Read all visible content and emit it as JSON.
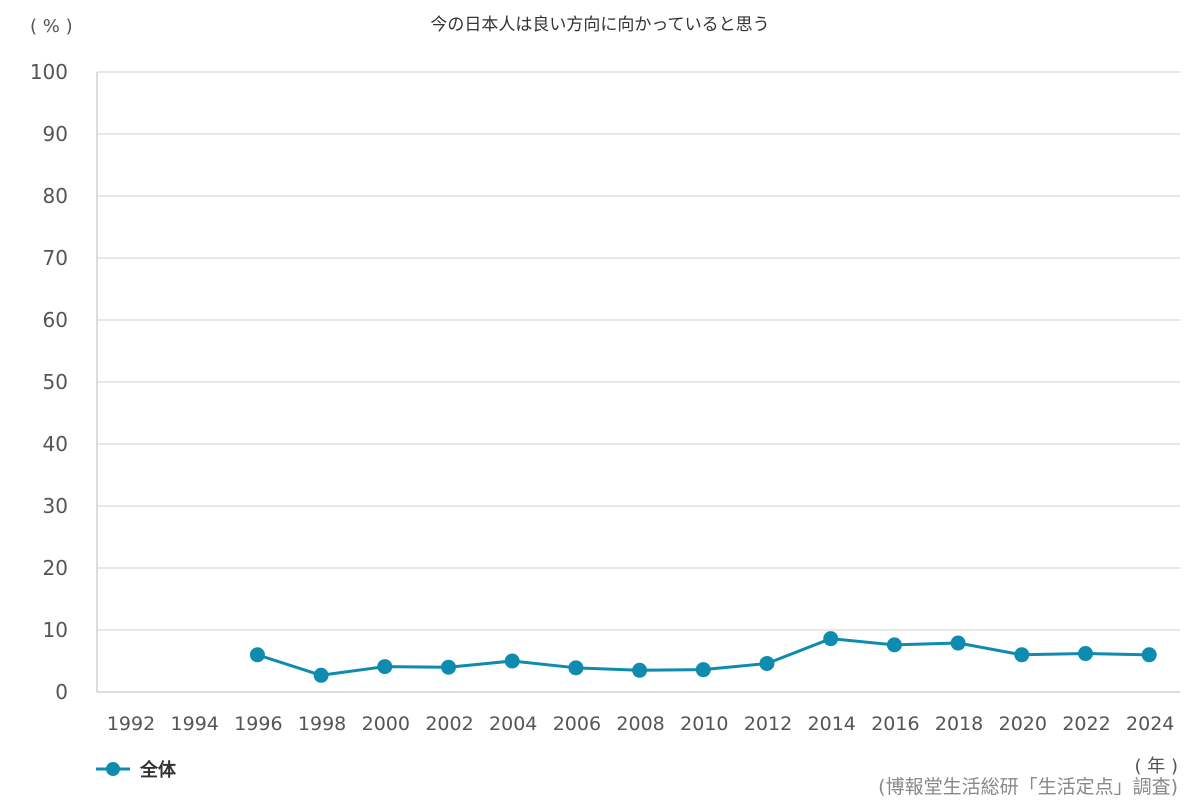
{
  "chart_data": {
    "type": "line",
    "title": "今の日本人は良い方向に向かっていると思う",
    "ylabel": "( % )",
    "xlabel": "( 年 )",
    "source": "(博報堂生活総研「生活定点」調査)",
    "ylim": [
      0,
      100
    ],
    "yticks": [
      0,
      10,
      20,
      30,
      40,
      50,
      60,
      70,
      80,
      90,
      100
    ],
    "categories": [
      "1992",
      "1994",
      "1996",
      "1998",
      "2000",
      "2002",
      "2004",
      "2006",
      "2008",
      "2010",
      "2012",
      "2014",
      "2016",
      "2018",
      "2020",
      "2022",
      "2024"
    ],
    "series": [
      {
        "name": "全体",
        "color": "#0f8bb0",
        "values": [
          null,
          null,
          6.0,
          2.7,
          4.1,
          4.0,
          5.0,
          3.9,
          3.5,
          3.6,
          4.6,
          8.6,
          7.6,
          7.9,
          6.0,
          6.2,
          6.0
        ]
      }
    ],
    "grid": true,
    "legend_position": "bottom-left"
  }
}
